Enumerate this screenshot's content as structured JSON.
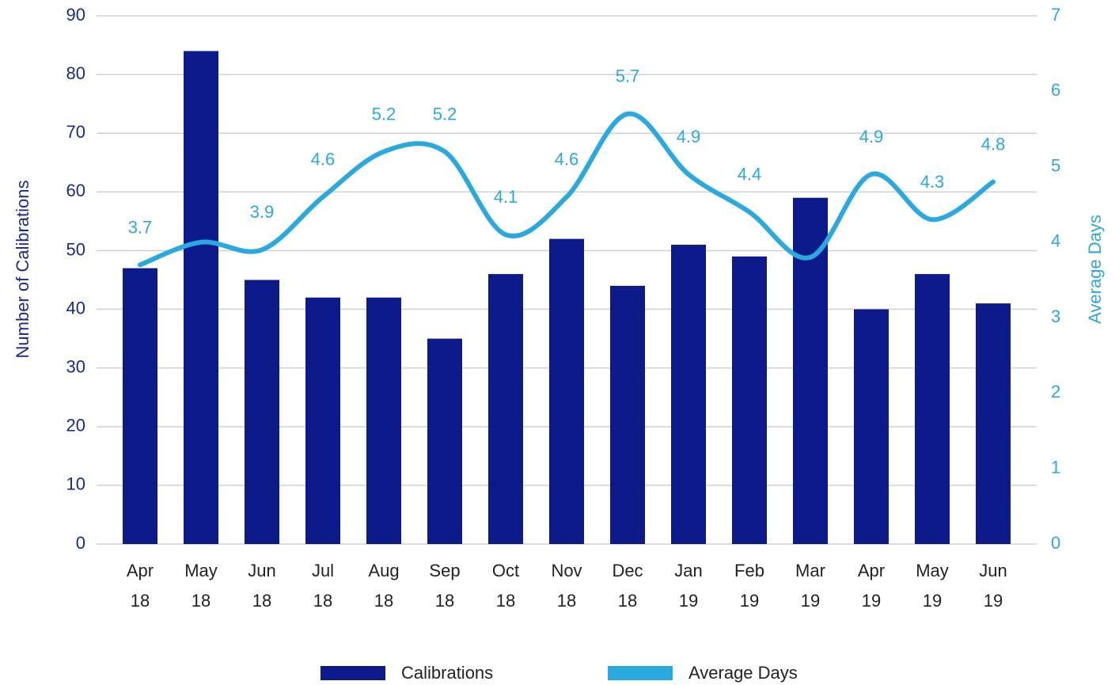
{
  "chart_data": {
    "type": "bar-line",
    "categories": [
      "Apr 18",
      "May 18",
      "Jun 18",
      "Jul 18",
      "Aug 18",
      "Sep 18",
      "Oct 18",
      "Nov 18",
      "Dec 18",
      "Jan 19",
      "Feb 19",
      "Mar 19",
      "Apr 19",
      "May 19",
      "Jun 19"
    ],
    "series": [
      {
        "name": "Calibrations",
        "color": "#0c1a8a",
        "type": "bar",
        "values": [
          47,
          84,
          45,
          42,
          42,
          35,
          46,
          52,
          44,
          51,
          49,
          59,
          40,
          46,
          41
        ]
      },
      {
        "name": "Average Days",
        "color": "#2aa9e0",
        "type": "line",
        "axis": "y2",
        "values": [
          3.7,
          4.0,
          3.9,
          4.6,
          5.2,
          5.2,
          4.1,
          4.6,
          5.7,
          4.9,
          4.4,
          3.8,
          4.9,
          4.3,
          4.8
        ],
        "value_labels": [
          "3.7",
          null,
          "3.9",
          "4.6",
          "5.2",
          "5.2",
          "4.1",
          "4.6",
          "5.7",
          "4.9",
          "4.4",
          null,
          "4.9",
          "4.3",
          "4.8"
        ]
      }
    ],
    "ylabel": "Number of Calibrations",
    "y2label": "Average Days",
    "ylim": [
      0,
      90
    ],
    "yticks": [
      0,
      10,
      20,
      30,
      40,
      50,
      60,
      70,
      80,
      90
    ],
    "y2lim": [
      0,
      7
    ],
    "y2ticks": [
      0,
      1,
      2,
      3,
      4,
      5,
      6,
      7
    ],
    "grid": true,
    "legend": "bottom"
  }
}
